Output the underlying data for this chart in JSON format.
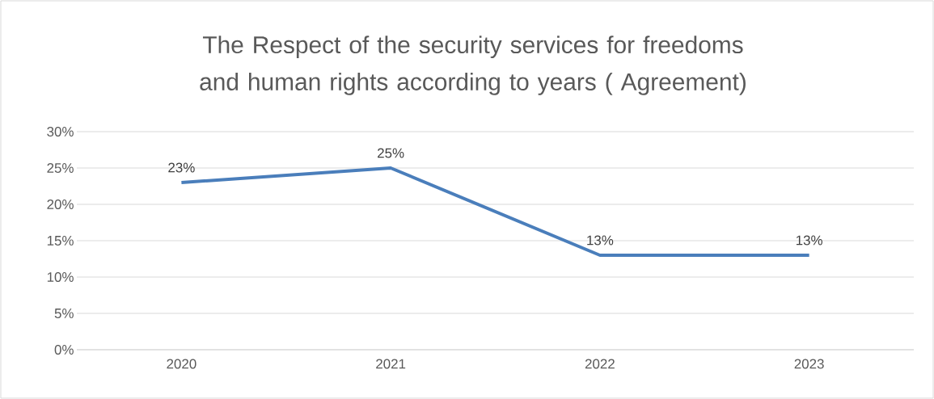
{
  "chart_data": {
    "type": "line",
    "title": "The Respect of the security services for freedoms and human rights according to years ( Agreement)",
    "categories": [
      "2020",
      "2021",
      "2022",
      "2023"
    ],
    "series": [
      {
        "color": "#4a7ebb",
        "values": [
          23,
          25,
          13,
          13
        ],
        "value_labels": [
          "23%",
          "25%",
          "13%",
          "13%"
        ]
      }
    ],
    "ylim": [
      0,
      30
    ],
    "yticks": [
      {
        "value": 0,
        "label": "0%"
      },
      {
        "value": 5,
        "label": "5%"
      },
      {
        "value": 10,
        "label": "10%"
      },
      {
        "value": 15,
        "label": "15%"
      },
      {
        "value": 20,
        "label": "20%"
      },
      {
        "value": 25,
        "label": "25%"
      },
      {
        "value": 30,
        "label": "30%"
      }
    ],
    "grid": "y",
    "marker": "none"
  }
}
